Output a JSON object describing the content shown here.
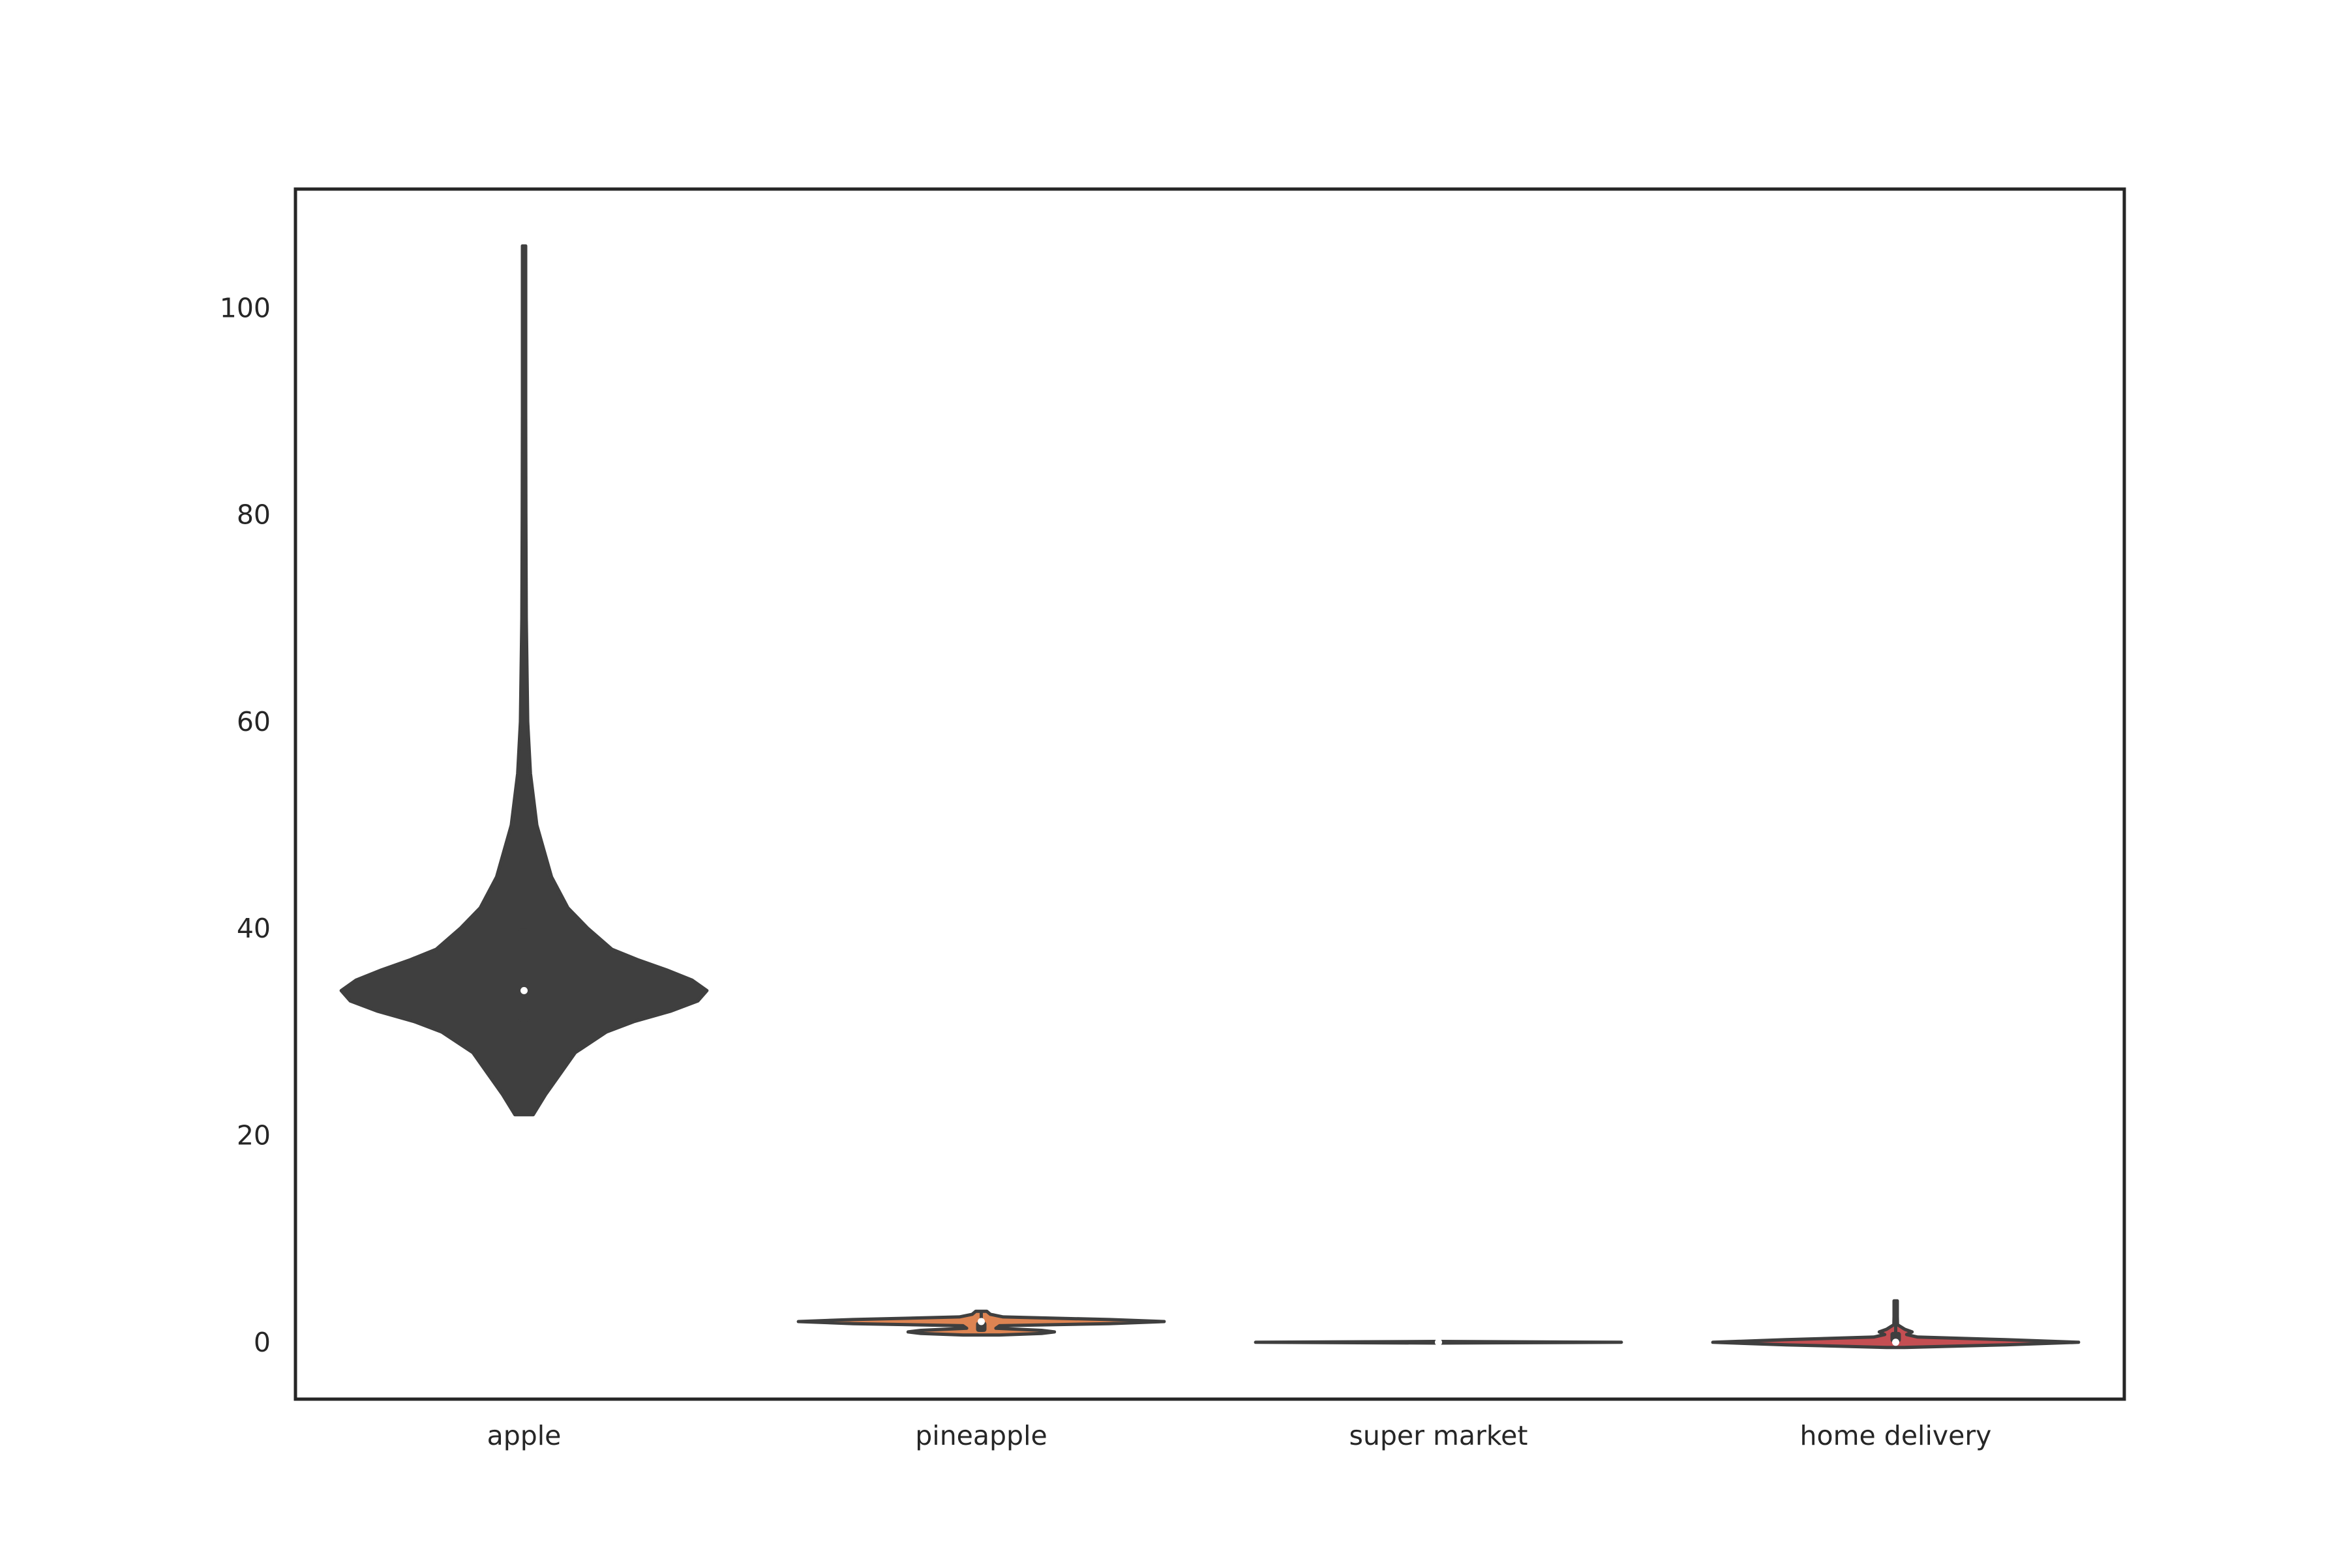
{
  "chart_data": {
    "type": "violin",
    "title": "",
    "xlabel": "",
    "ylabel": "",
    "categories": [
      "apple",
      "pineapple",
      "super market",
      "home delivery"
    ],
    "ylim": [
      -5.5,
      111.5
    ],
    "yticks": [
      0,
      20,
      40,
      60,
      80,
      100
    ],
    "ytick_labels": [
      "0",
      "20",
      "40",
      "60",
      "80",
      "100"
    ],
    "grid": false,
    "legend": "none",
    "colors": {
      "axis": "#262626",
      "outline": "#3f3f3f",
      "apple_fill": "#3f3f3f",
      "pineapple_fill": "#dd8452",
      "super_market_fill": "#55a868",
      "home_delivery_fill": "#c44e52",
      "median_marker": "#ffffff"
    },
    "series": [
      {
        "category": "apple",
        "min": 22,
        "q1": 31,
        "median": 34,
        "q3": 40,
        "max": 106,
        "density": [
          [
            22,
            0.05
          ],
          [
            24,
            0.12
          ],
          [
            26,
            0.2
          ],
          [
            28,
            0.28
          ],
          [
            30,
            0.45
          ],
          [
            31,
            0.6
          ],
          [
            32,
            0.8
          ],
          [
            33,
            0.95
          ],
          [
            34,
            1.0
          ],
          [
            35,
            0.92
          ],
          [
            36,
            0.78
          ],
          [
            37,
            0.62
          ],
          [
            38,
            0.48
          ],
          [
            40,
            0.35
          ],
          [
            42,
            0.24
          ],
          [
            45,
            0.15
          ],
          [
            50,
            0.07
          ],
          [
            55,
            0.035
          ],
          [
            60,
            0.02
          ],
          [
            70,
            0.012
          ],
          [
            80,
            0.01
          ],
          [
            90,
            0.008
          ],
          [
            100,
            0.007
          ],
          [
            106,
            0.005
          ]
        ]
      },
      {
        "category": "pineapple",
        "min": 1,
        "q1": 1,
        "median": 2,
        "q3": 2,
        "max": 3,
        "density": [
          [
            0.7,
            0.1
          ],
          [
            0.85,
            0.33
          ],
          [
            1.0,
            0.4
          ],
          [
            1.15,
            0.33
          ],
          [
            1.35,
            0.08
          ],
          [
            1.6,
            0.1
          ],
          [
            1.8,
            0.7
          ],
          [
            2.0,
            1.0
          ],
          [
            2.2,
            0.7
          ],
          [
            2.45,
            0.12
          ],
          [
            2.7,
            0.05
          ],
          [
            3.0,
            0.03
          ]
        ]
      },
      {
        "category": "super market",
        "min": 0,
        "q1": 0,
        "median": 0,
        "q3": 0,
        "max": 0,
        "density": [
          [
            -0.08,
            0.0
          ],
          [
            0.0,
            1.0
          ],
          [
            0.08,
            0.0
          ]
        ]
      },
      {
        "category": "home delivery",
        "min": 0,
        "q1": 0,
        "median": 0,
        "q3": 1,
        "max": 4,
        "density": [
          [
            -0.5,
            0.05
          ],
          [
            -0.25,
            0.6
          ],
          [
            0.0,
            1.0
          ],
          [
            0.25,
            0.6
          ],
          [
            0.5,
            0.12
          ],
          [
            0.75,
            0.06
          ],
          [
            1.0,
            0.09
          ],
          [
            1.25,
            0.05
          ],
          [
            1.7,
            0.01
          ],
          [
            2.5,
            0.008
          ],
          [
            3.2,
            0.006
          ],
          [
            4.0,
            0.004
          ]
        ]
      }
    ]
  }
}
